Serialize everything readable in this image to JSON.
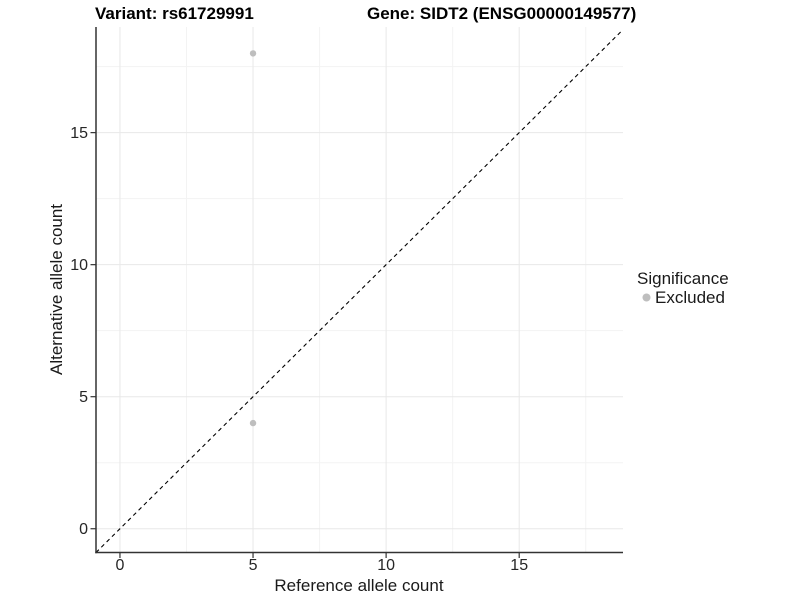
{
  "chart_data": {
    "type": "scatter",
    "title_left": "Variant: rs61729991",
    "title_right": "Gene: SIDT2 (ENSG00000149577)",
    "xlabel": "Reference allele count",
    "ylabel": "Alternative allele count",
    "xlim": [
      -0.9,
      18.9
    ],
    "ylim": [
      -0.9,
      19.0
    ],
    "xticks": [
      0,
      5,
      10,
      15
    ],
    "yticks": [
      0,
      5,
      10,
      15
    ],
    "xminor": [
      2.5,
      7.5,
      12.5,
      17.5
    ],
    "yminor": [
      2.5,
      7.5,
      12.5,
      17.5
    ],
    "grid": true,
    "legend_position": "right",
    "identity_line": {
      "slope": 1,
      "intercept": 0,
      "linetype": "dashed",
      "color": "#000000"
    },
    "series": [
      {
        "name": "Excluded",
        "color": "#bebebe",
        "points": [
          {
            "x": 5,
            "y": 18
          },
          {
            "x": 5,
            "y": 4
          }
        ]
      }
    ],
    "legend": {
      "title": "Significance",
      "entries": [
        {
          "label": "Excluded",
          "color": "#bebebe",
          "marker": "circle-icon"
        }
      ]
    }
  },
  "colors": {
    "background": "#ffffff",
    "grid_major": "#e8e8e8",
    "grid_minor": "#f3f3f3",
    "axis_line": "#333333",
    "tick_mark": "#333333",
    "point": "#bebebe"
  }
}
